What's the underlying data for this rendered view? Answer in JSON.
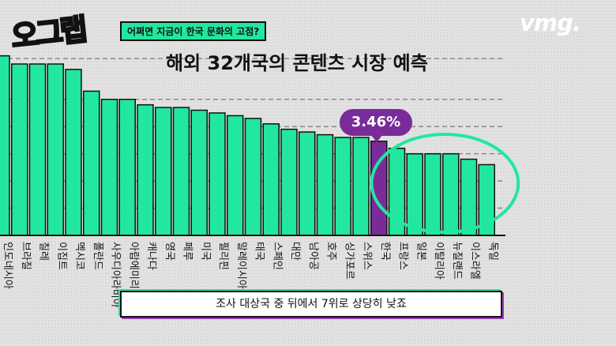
{
  "header": {
    "logo_text": "오그랩",
    "tagline": "어쩌면 지금이 한국 문화의 고점?",
    "brand": "vmg."
  },
  "title": "해외 32개국의 콘텐츠 시장 예측",
  "highlight_value": "3.46%",
  "caption": "조사 대상국 중 뒤에서 7위로 상당히 낮죠",
  "colors": {
    "bar": "#22e79f",
    "highlight_bar": "#7a2b9a",
    "ring": "#22e79f",
    "background": "#e2e2e2"
  },
  "chart_data": {
    "type": "bar",
    "categories": [
      "인도네시아",
      "브라질",
      "칠레",
      "이집트",
      "멕시코",
      "폴란드",
      "사우디아라비아",
      "아랍에미리트",
      "캐나다",
      "영국",
      "페루",
      "미국",
      "필리핀",
      "말레이시아",
      "태국",
      "스페인",
      "대만",
      "남아공",
      "호주",
      "싱가포르",
      "스위스",
      "한국",
      "프랑스",
      "일본",
      "이탈리아",
      "뉴질랜드",
      "이스라엘",
      "독일"
    ],
    "values": [
      6.6,
      6.3,
      6.3,
      6.3,
      6.1,
      5.3,
      5.0,
      5.0,
      4.8,
      4.7,
      4.7,
      4.6,
      4.5,
      4.4,
      4.3,
      4.1,
      3.9,
      3.8,
      3.7,
      3.6,
      3.6,
      3.46,
      3.2,
      3.0,
      3.0,
      3.0,
      2.8,
      2.6
    ],
    "highlight_category": "한국",
    "circled_categories": [
      "프랑스",
      "일본",
      "이탈리아",
      "뉴질랜드",
      "이스라엘",
      "독일"
    ],
    "ylim": [
      0,
      7.2
    ],
    "grid": "dashed horizontal"
  }
}
